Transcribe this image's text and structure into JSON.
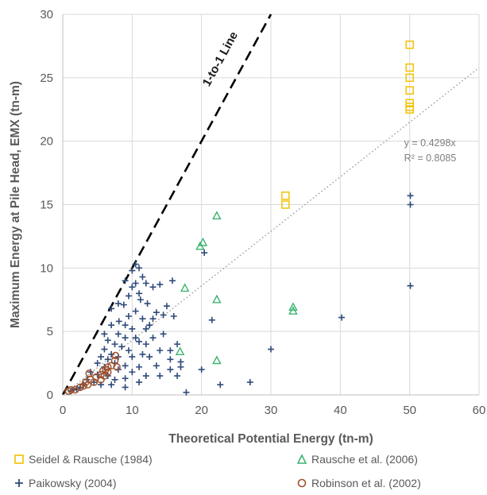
{
  "chart_data": {
    "type": "scatter",
    "xlabel": "Theoretical Potential Energy (tn-m)",
    "ylabel": "Maximum Energy at Pile Head, EMX (tn-m)",
    "xlim": [
      0,
      60
    ],
    "ylim": [
      0,
      30
    ],
    "xticks": [
      0,
      10,
      20,
      30,
      40,
      50,
      60
    ],
    "yticks": [
      0,
      5,
      10,
      15,
      20,
      25,
      30
    ],
    "grid": true,
    "legend_position": "bottom",
    "one_to_one_label": "1-to-1 Line",
    "trendline": {
      "slope": 0.4298,
      "equation_label": "y = 0.4298x",
      "r2_label": "R² = 0.8085"
    },
    "series": [
      {
        "name": "Seidel & Rausche (1984)",
        "marker": "square",
        "color": "#f2c200",
        "points": [
          [
            50,
            27.6
          ],
          [
            50,
            25.8
          ],
          [
            50,
            25.0
          ],
          [
            50,
            24.0
          ],
          [
            50,
            23.0
          ],
          [
            50,
            22.7
          ],
          [
            50,
            22.5
          ],
          [
            32.1,
            15.7
          ],
          [
            32.1,
            15.0
          ]
        ]
      },
      {
        "name": "Rausche et al. (2006)",
        "marker": "triangle",
        "color": "#3cb371",
        "points": [
          [
            22.2,
            14.1
          ],
          [
            20.2,
            12.0
          ],
          [
            19.8,
            11.7
          ],
          [
            17.6,
            8.4
          ],
          [
            22.2,
            7.5
          ],
          [
            33.2,
            6.9
          ],
          [
            33.2,
            6.6
          ],
          [
            16.9,
            3.4
          ],
          [
            22.2,
            2.7
          ]
        ]
      },
      {
        "name": "Paikowsky (2004)",
        "marker": "plus",
        "color": "#2e4a7a",
        "points": [
          [
            50.1,
            15.7
          ],
          [
            50.1,
            15.0
          ],
          [
            50.1,
            8.6
          ],
          [
            40.2,
            6.1
          ],
          [
            30.0,
            3.6
          ],
          [
            27.0,
            1.0
          ],
          [
            22.7,
            0.8
          ],
          [
            17.8,
            0.2
          ],
          [
            21.5,
            5.9
          ],
          [
            20.4,
            11.2
          ],
          [
            10.5,
            10.3
          ],
          [
            11.5,
            9.3
          ],
          [
            12.0,
            8.8
          ],
          [
            9.0,
            9.0
          ],
          [
            10.0,
            8.5
          ],
          [
            11.0,
            8.0
          ],
          [
            13.0,
            8.5
          ],
          [
            14.0,
            8.7
          ],
          [
            15.8,
            9.0
          ],
          [
            11.2,
            7.5
          ],
          [
            8.8,
            7.1
          ],
          [
            12.2,
            7.2
          ],
          [
            7.0,
            6.8
          ],
          [
            9.5,
            6.2
          ],
          [
            10.5,
            6.6
          ],
          [
            11.5,
            6.0
          ],
          [
            8.1,
            5.8
          ],
          [
            9.0,
            5.5
          ],
          [
            10.0,
            5.2
          ],
          [
            12.5,
            5.5
          ],
          [
            13.5,
            6.5
          ],
          [
            15.0,
            7.0
          ],
          [
            16.0,
            6.2
          ],
          [
            14.5,
            4.8
          ],
          [
            8.0,
            4.8
          ],
          [
            9.0,
            4.5
          ],
          [
            10.5,
            4.5
          ],
          [
            11.0,
            4.2
          ],
          [
            12.0,
            4.0
          ],
          [
            13.0,
            4.5
          ],
          [
            15.5,
            3.5
          ],
          [
            16.5,
            4.0
          ],
          [
            6.5,
            4.3
          ],
          [
            7.5,
            4.0
          ],
          [
            8.5,
            3.8
          ],
          [
            9.5,
            3.5
          ],
          [
            6.0,
            3.6
          ],
          [
            7.0,
            3.2
          ],
          [
            8.0,
            3.0
          ],
          [
            10.0,
            3.0
          ],
          [
            11.5,
            3.2
          ],
          [
            12.5,
            3.0
          ],
          [
            14.0,
            3.5
          ],
          [
            15.5,
            2.8
          ],
          [
            17.0,
            2.6
          ],
          [
            5.5,
            3.0
          ],
          [
            6.5,
            2.8
          ],
          [
            7.5,
            2.5
          ],
          [
            9.0,
            2.3
          ],
          [
            11.0,
            2.2
          ],
          [
            13.5,
            2.3
          ],
          [
            15.5,
            2.0
          ],
          [
            17.0,
            2.2
          ],
          [
            20.0,
            2.0
          ],
          [
            5.0,
            2.5
          ],
          [
            6.0,
            2.2
          ],
          [
            8.0,
            2.0
          ],
          [
            10.0,
            1.8
          ],
          [
            12.0,
            1.5
          ],
          [
            14.0,
            1.5
          ],
          [
            16.5,
            1.5
          ],
          [
            4.0,
            1.8
          ],
          [
            5.0,
            1.6
          ],
          [
            6.5,
            1.5
          ],
          [
            7.5,
            1.2
          ],
          [
            9.0,
            1.3
          ],
          [
            11.0,
            1.0
          ],
          [
            3.5,
            1.2
          ],
          [
            4.5,
            1.0
          ],
          [
            5.5,
            0.8
          ],
          [
            7.0,
            0.8
          ],
          [
            9.0,
            0.6
          ],
          [
            2.5,
            0.6
          ],
          [
            3.0,
            0.8
          ],
          [
            2.0,
            0.5
          ],
          [
            1.5,
            0.4
          ],
          [
            1.2,
            0.3
          ],
          [
            6.0,
            4.8
          ],
          [
            7.0,
            5.5
          ],
          [
            12.0,
            5.2
          ],
          [
            13.0,
            6.0
          ],
          [
            14.5,
            6.3
          ],
          [
            10.0,
            9.8
          ],
          [
            11.0,
            10.0
          ],
          [
            8.0,
            7.2
          ],
          [
            9.5,
            7.8
          ],
          [
            10.5,
            8.8
          ]
        ]
      },
      {
        "name": "Robinson et al. (2002)",
        "marker": "circle",
        "color": "#a0522d",
        "points": [
          [
            0.8,
            0.3
          ],
          [
            1.2,
            0.4
          ],
          [
            1.8,
            0.4
          ],
          [
            2.5,
            0.6
          ],
          [
            3.0,
            0.7
          ],
          [
            3.3,
            1.0
          ],
          [
            3.6,
            0.8
          ],
          [
            4.0,
            1.2
          ],
          [
            4.5,
            1.0
          ],
          [
            4.8,
            1.4
          ],
          [
            3.8,
            1.7
          ],
          [
            5.5,
            1.6
          ],
          [
            5.8,
            1.9
          ],
          [
            6.0,
            1.5
          ],
          [
            6.2,
            2.0
          ],
          [
            6.5,
            1.8
          ],
          [
            6.5,
            2.2
          ],
          [
            7.0,
            2.3
          ],
          [
            7.5,
            2.7
          ],
          [
            7.6,
            3.1
          ],
          [
            7.8,
            2.2
          ],
          [
            5.5,
            1.2
          ]
        ]
      }
    ]
  }
}
